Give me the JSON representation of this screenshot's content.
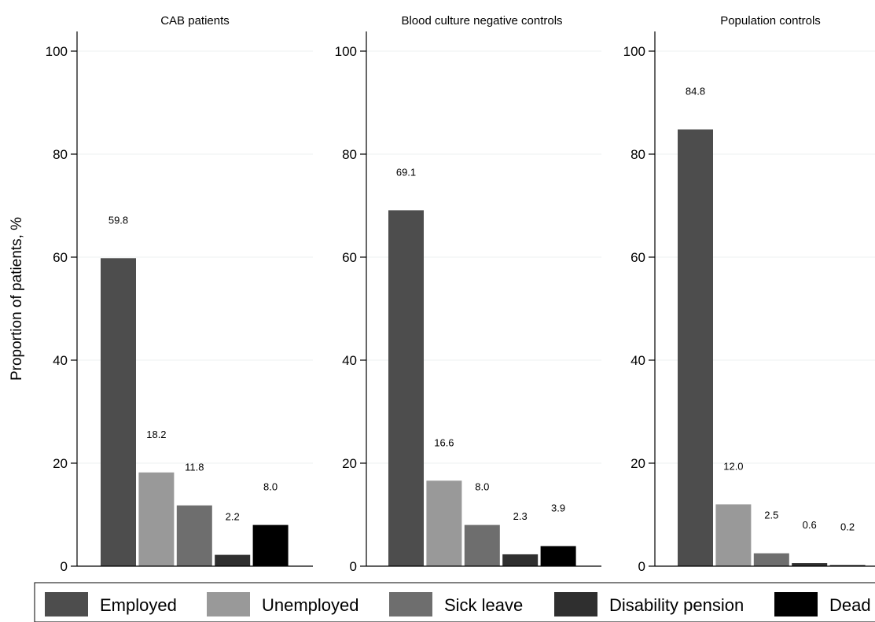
{
  "chart_data": {
    "type": "bar",
    "ylabel": "Proportion of patients, %",
    "ylim": [
      0,
      100
    ],
    "yticks": [
      0,
      20,
      40,
      60,
      80,
      100
    ],
    "grid": true,
    "legend_position": "bottom",
    "series": [
      {
        "name": "Employed",
        "color": "#4d4d4d"
      },
      {
        "name": "Unemployed",
        "color": "#999999"
      },
      {
        "name": "Sick leave",
        "color": "#6e6e6e"
      },
      {
        "name": "Disability pension",
        "color": "#2f2f2f"
      },
      {
        "name": "Dead",
        "color": "#000000"
      }
    ],
    "panels": [
      {
        "title": "CAB patients",
        "values": [
          59.8,
          18.2,
          11.8,
          2.2,
          8.0
        ],
        "labels": [
          "59.8",
          "18.2",
          "11.8",
          "2.2",
          "8.0"
        ]
      },
      {
        "title": "Blood culture negative controls",
        "values": [
          69.1,
          16.6,
          8.0,
          2.3,
          3.9
        ],
        "labels": [
          "69.1",
          "16.6",
          "8.0",
          "2.3",
          "3.9"
        ]
      },
      {
        "title": "Population controls",
        "values": [
          84.8,
          12.0,
          2.5,
          0.6,
          0.2
        ],
        "labels": [
          "84.8",
          "12.0",
          "2.5",
          "0.6",
          "0.2"
        ]
      }
    ]
  }
}
